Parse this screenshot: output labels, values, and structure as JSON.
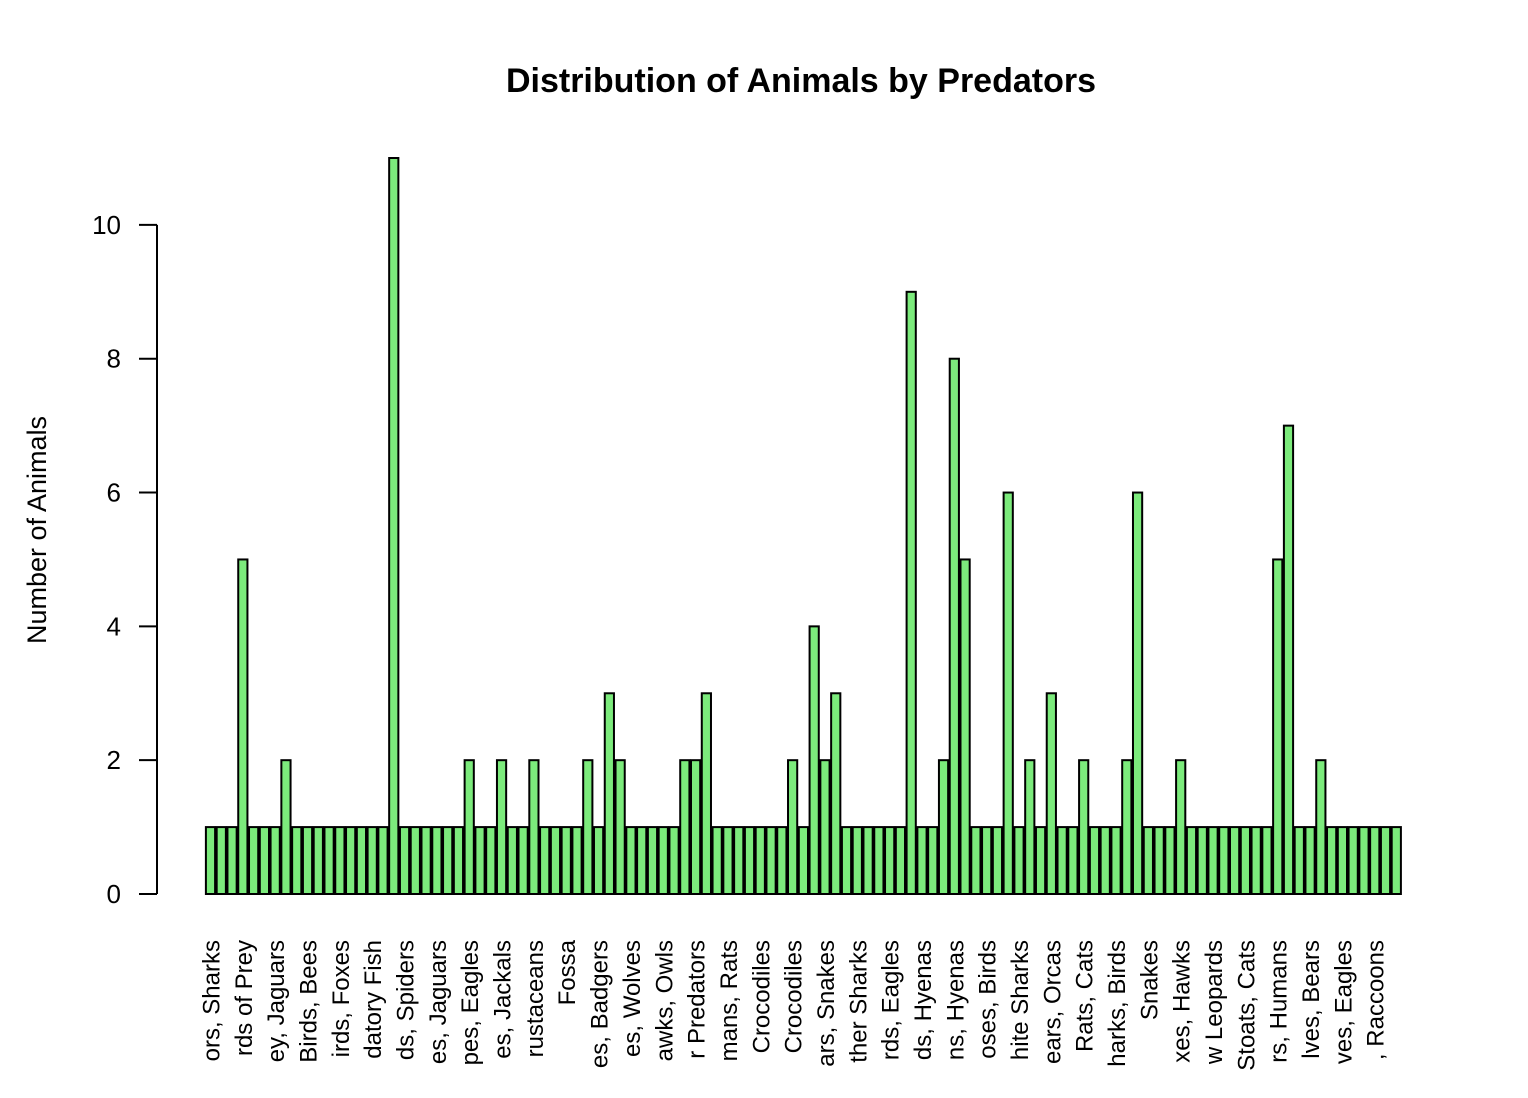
{
  "chart_data": {
    "type": "bar",
    "title": "Distribution of Animals by Predators",
    "y_label": "Number of Animals",
    "categories": [
      "ors, Sharks",
      null,
      null,
      "rds of Prey",
      null,
      null,
      "ey, Jaguars",
      null,
      null,
      "Birds, Bees",
      null,
      null,
      "irds, Foxes",
      null,
      null,
      "datory Fish",
      null,
      null,
      "ds, Spiders",
      null,
      null,
      "es, Jaguars",
      null,
      null,
      "pes, Eagles",
      null,
      null,
      "es, Jackals",
      null,
      null,
      "rustaceans",
      null,
      null,
      "Fossa",
      null,
      null,
      "es, Badgers",
      null,
      null,
      "es, Wolves",
      null,
      null,
      "awks, Owls",
      null,
      null,
      "r Predators",
      null,
      null,
      "mans, Rats",
      null,
      null,
      "Crocodiles",
      null,
      null,
      "Crocodiles",
      null,
      null,
      "ars, Snakes",
      null,
      null,
      "ther Sharks",
      null,
      null,
      "rds, Eagles",
      null,
      null,
      "ds, Hyenas",
      null,
      null,
      "ns, Hyenas",
      null,
      null,
      "oses, Birds",
      null,
      null,
      "hite Sharks",
      null,
      null,
      "ears, Orcas",
      null,
      null,
      "Rats, Cats",
      null,
      null,
      "harks, Birds",
      null,
      null,
      "Snakes",
      null,
      null,
      "xes, Hawks",
      null,
      null,
      "w Leopards",
      null,
      null,
      "Stoats, Cats",
      null,
      null,
      "rs, Humans",
      null,
      null,
      "lves, Bears",
      null,
      null,
      "ves, Eagles",
      null,
      null,
      ", Raccoons",
      null,
      null
    ],
    "values": [
      1,
      1,
      1,
      5,
      1,
      1,
      1,
      2,
      1,
      1,
      1,
      1,
      1,
      1,
      1,
      1,
      1,
      11,
      1,
      1,
      1,
      1,
      1,
      1,
      2,
      1,
      1,
      2,
      1,
      1,
      2,
      1,
      1,
      1,
      1,
      2,
      1,
      3,
      2,
      1,
      1,
      1,
      1,
      1,
      2,
      2,
      3,
      1,
      1,
      1,
      1,
      1,
      1,
      1,
      2,
      1,
      4,
      2,
      3,
      1,
      1,
      1,
      1,
      1,
      1,
      9,
      1,
      1,
      2,
      8,
      5,
      1,
      1,
      1,
      6,
      1,
      2,
      1,
      3,
      1,
      1,
      2,
      1,
      1,
      1,
      2,
      6,
      1,
      1,
      1,
      2,
      1,
      1,
      1,
      1,
      1,
      1,
      1,
      1,
      5,
      7,
      1,
      1,
      2,
      1,
      1,
      1,
      1,
      1,
      1,
      1
    ],
    "color": "#7ceb7c",
    "ylim": [
      0,
      11
    ],
    "yticks": [
      0,
      2,
      4,
      6,
      8,
      10
    ]
  }
}
